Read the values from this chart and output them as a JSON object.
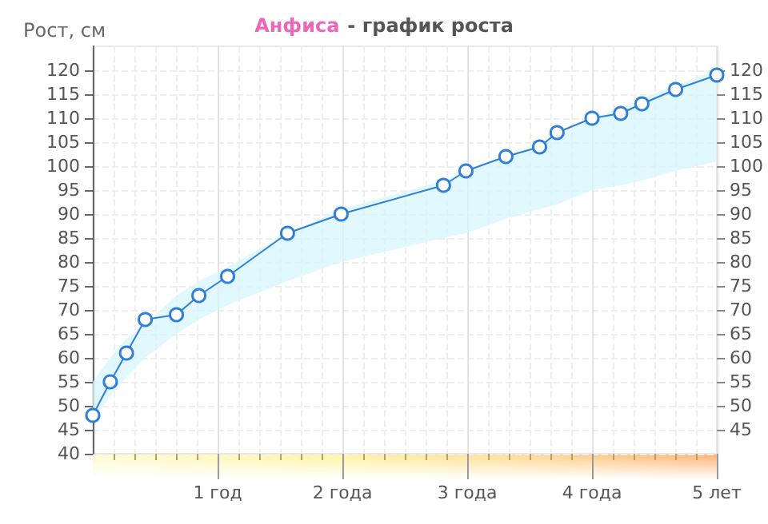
{
  "chart_data": {
    "type": "line",
    "title": "Анфиса - график роста",
    "ylabel": "Рост, см",
    "xlim": [
      0,
      5
    ],
    "xticks": [
      {
        "value": 1,
        "label": "1 год"
      },
      {
        "value": 2,
        "label": "2 года"
      },
      {
        "value": 3,
        "label": "3 года"
      },
      {
        "value": 4,
        "label": "4 года"
      },
      {
        "value": 5,
        "label": "5 лет"
      }
    ],
    "ylim": [
      40,
      125
    ],
    "yticks": [
      40,
      45,
      50,
      55,
      60,
      65,
      70,
      75,
      80,
      85,
      90,
      95,
      100,
      105,
      110,
      115,
      120
    ],
    "y2lim": [
      40,
      125
    ],
    "y2ticks": [
      45,
      50,
      55,
      60,
      65,
      70,
      75,
      80,
      85,
      90,
      95,
      100,
      105,
      110,
      115,
      120
    ],
    "grid": true,
    "marker": "circle",
    "line_style": "solid",
    "series": [
      {
        "color": "#2f7ed8",
        "x": [
          0,
          0.14,
          0.27,
          0.42,
          0.67,
          0.85,
          1.08,
          1.56,
          1.99,
          2.81,
          2.99,
          3.31,
          3.58,
          3.72,
          4.0,
          4.23,
          4.4,
          4.67,
          5.0
        ],
        "values": [
          48,
          55,
          61,
          68,
          69,
          73,
          77,
          86,
          90,
          96,
          99,
          102,
          104,
          107,
          110,
          111,
          113,
          116,
          119
        ],
        "lower": [
          47,
          52,
          56,
          60,
          65,
          68,
          71,
          76,
          80,
          85,
          86,
          89,
          91,
          92,
          95,
          96,
          97,
          99,
          101
        ],
        "upper": [
          55,
          60,
          64,
          67,
          73,
          76,
          79,
          86,
          91,
          97,
          99,
          102,
          105,
          106,
          110,
          112,
          114,
          117,
          120
        ]
      }
    ]
  }
}
